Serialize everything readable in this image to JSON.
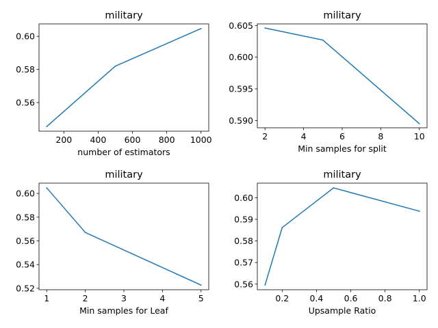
{
  "chart_data": [
    {
      "type": "line",
      "title": "military",
      "xlabel": "number of estimators",
      "ylabel": "",
      "x": [
        100,
        500,
        1000
      ],
      "series": [
        {
          "values": [
            0.5455,
            0.582,
            0.6047
          ]
        }
      ],
      "xlim": [
        55,
        1045
      ],
      "ylim": [
        0.5427,
        0.6075
      ],
      "xticks": [
        200,
        400,
        600,
        800,
        1000
      ],
      "xtick_labels": [
        "200",
        "400",
        "600",
        "800",
        "1000"
      ],
      "yticks": [
        0.56,
        0.58,
        0.6
      ],
      "ytick_labels": [
        "0.56",
        "0.58",
        "0.60"
      ],
      "grid": false,
      "legend": null,
      "line_color": "#1f77b4"
    },
    {
      "type": "line",
      "title": "military",
      "xlabel": "Min samples for split",
      "ylabel": "",
      "x": [
        2,
        5,
        10
      ],
      "series": [
        {
          "values": [
            0.6046,
            0.6027,
            0.5895
          ]
        }
      ],
      "xlim": [
        1.6,
        10.4
      ],
      "ylim": [
        0.58885,
        0.60525
      ],
      "xticks": [
        2,
        4,
        6,
        8,
        10
      ],
      "xtick_labels": [
        "2",
        "4",
        "6",
        "8",
        "10"
      ],
      "yticks": [
        0.59,
        0.595,
        0.6,
        0.605
      ],
      "ytick_labels": [
        "0.590",
        "0.595",
        "0.600",
        "0.605"
      ],
      "grid": false,
      "legend": null,
      "line_color": "#1f77b4"
    },
    {
      "type": "line",
      "title": "military",
      "xlabel": "Min samples for Leaf",
      "ylabel": "",
      "x": [
        1,
        2,
        5
      ],
      "series": [
        {
          "values": [
            0.6047,
            0.5671,
            0.5227
          ]
        }
      ],
      "xlim": [
        0.8,
        5.2
      ],
      "ylim": [
        0.5188,
        0.6087
      ],
      "xticks": [
        1,
        2,
        3,
        4,
        5
      ],
      "xtick_labels": [
        "1",
        "2",
        "3",
        "4",
        "5"
      ],
      "yticks": [
        0.52,
        0.54,
        0.56,
        0.58,
        0.6
      ],
      "ytick_labels": [
        "0.52",
        "0.54",
        "0.56",
        "0.58",
        "0.60"
      ],
      "grid": false,
      "legend": null,
      "line_color": "#1f77b4"
    },
    {
      "type": "line",
      "title": "military",
      "xlabel": "Upsample Ratio",
      "ylabel": "",
      "x": [
        0.1,
        0.2,
        0.5,
        1.0
      ],
      "series": [
        {
          "values": [
            0.5596,
            0.5862,
            0.6046,
            0.5938
          ]
        }
      ],
      "xlim": [
        0.055,
        1.045
      ],
      "ylim": [
        0.5574,
        0.6068
      ],
      "xticks": [
        0.2,
        0.4,
        0.6,
        0.8,
        1.0
      ],
      "xtick_labels": [
        "0.2",
        "0.4",
        "0.6",
        "0.8",
        "1.0"
      ],
      "yticks": [
        0.56,
        0.57,
        0.58,
        0.59,
        0.6
      ],
      "ytick_labels": [
        "0.56",
        "0.57",
        "0.58",
        "0.59",
        "0.60"
      ],
      "grid": false,
      "legend": null,
      "line_color": "#1f77b4"
    }
  ]
}
